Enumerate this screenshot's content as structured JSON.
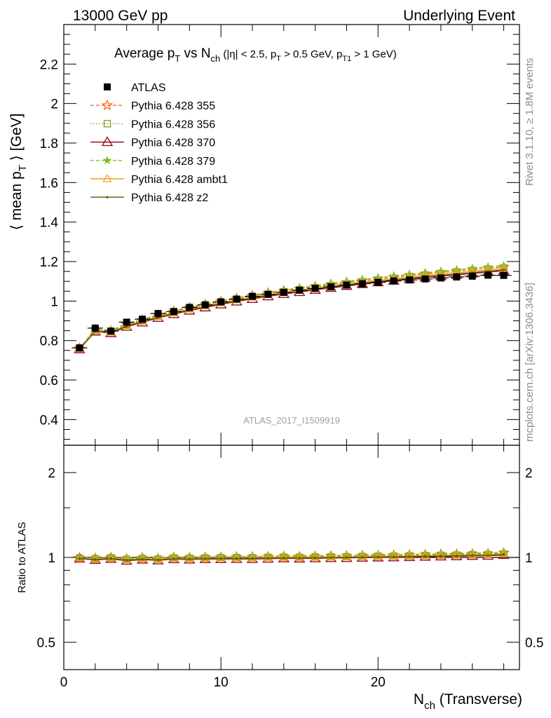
{
  "header": {
    "left": "13000 GeV pp",
    "right": "Underlying Event"
  },
  "side": {
    "rivet": "Rivet 3.1.10, ≥ 1.8M events",
    "mcplots": "mcplots.cern.ch [arXiv:1306.3436]"
  },
  "colors": {
    "atlas": "#000000",
    "p355": "#ff6a1a",
    "p356": "#7c9e1e",
    "p370": "#9b0e1b",
    "p379": "#79c11d",
    "ambt1": "#f0a018",
    "z2": "#5b5b0a"
  },
  "chart_data": [
    {
      "type": "scatter",
      "panel": "main",
      "title_parts": {
        "a": "Average p",
        "a_sub": "T",
        "b": " vs N",
        "b_sub": "ch",
        "c": " (|η| < 2.5, p",
        "c_sub": "T",
        "d": " > 0.5 GeV, p",
        "d_sub": "T1",
        "e": " > 1 GeV)"
      },
      "ylabel_parts": {
        "a": "⟨ mean p",
        "sub": "T",
        "b": " ⟩ [GeV]"
      },
      "xlabel_parts": {
        "a": "N",
        "sub": "ch",
        "b": " (Transverse)"
      },
      "watermark": "ATLAS_2017_I1509919",
      "xlim": [
        0,
        29
      ],
      "ylim": [
        0.27,
        2.4
      ],
      "xticks": [
        0,
        10,
        20
      ],
      "xtick_labels": [
        "0",
        "10",
        "20"
      ],
      "yticks": [
        0.4,
        0.6,
        0.8,
        1.0,
        1.2,
        1.4,
        1.6,
        1.8,
        2.0,
        2.2
      ],
      "ytick_labels": [
        "0.4",
        "0.6",
        "0.8",
        "1",
        "1.2",
        "1.4",
        "1.6",
        "1.8",
        "2",
        "2.2"
      ],
      "legend_position": "top-left",
      "x": [
        1,
        2,
        3,
        4,
        5,
        6,
        7,
        8,
        9,
        10,
        11,
        12,
        13,
        14,
        15,
        16,
        17,
        18,
        19,
        20,
        21,
        22,
        23,
        24,
        25,
        26,
        27,
        28
      ],
      "series": [
        {
          "name": "ATLAS",
          "style": "data",
          "values": [
            0.763,
            0.863,
            0.848,
            0.893,
            0.908,
            0.937,
            0.947,
            0.968,
            0.981,
            0.996,
            1.01,
            1.024,
            1.034,
            1.044,
            1.055,
            1.064,
            1.072,
            1.081,
            1.088,
            1.095,
            1.102,
            1.107,
            1.112,
            1.117,
            1.122,
            1.126,
            1.131,
            1.13
          ]
        },
        {
          "name": "Pythia 6.428 355",
          "style": "p355",
          "values": [
            0.76,
            0.856,
            0.848,
            0.882,
            0.904,
            0.928,
            0.947,
            0.966,
            0.982,
            0.998,
            1.013,
            1.027,
            1.04,
            1.052,
            1.062,
            1.073,
            1.084,
            1.094,
            1.103,
            1.112,
            1.121,
            1.129,
            1.137,
            1.145,
            1.152,
            1.159,
            1.166,
            1.172
          ]
        },
        {
          "name": "Pythia 6.428 356",
          "style": "p356",
          "values": [
            0.759,
            0.854,
            0.846,
            0.88,
            0.901,
            0.925,
            0.944,
            0.962,
            0.978,
            0.994,
            1.009,
            1.022,
            1.035,
            1.047,
            1.057,
            1.068,
            1.078,
            1.088,
            1.097,
            1.106,
            1.114,
            1.122,
            1.13,
            1.137,
            1.144,
            1.151,
            1.158,
            1.164
          ]
        },
        {
          "name": "Pythia 6.428 370",
          "style": "p370",
          "values": [
            0.756,
            0.846,
            0.838,
            0.87,
            0.892,
            0.915,
            0.934,
            0.952,
            0.968,
            0.983,
            0.998,
            1.011,
            1.024,
            1.036,
            1.046,
            1.057,
            1.067,
            1.077,
            1.086,
            1.095,
            1.103,
            1.111,
            1.119,
            1.126,
            1.133,
            1.14,
            1.147,
            1.153
          ]
        },
        {
          "name": "Pythia 6.428 379",
          "style": "p379",
          "values": [
            0.762,
            0.858,
            0.851,
            0.885,
            0.907,
            0.931,
            0.951,
            0.97,
            0.986,
            1.002,
            1.017,
            1.031,
            1.044,
            1.056,
            1.067,
            1.078,
            1.089,
            1.099,
            1.109,
            1.118,
            1.127,
            1.135,
            1.143,
            1.151,
            1.159,
            1.166,
            1.173,
            1.179
          ]
        },
        {
          "name": "Pythia 6.428 ambt1",
          "style": "ambt1",
          "values": [
            0.757,
            0.849,
            0.842,
            0.875,
            0.897,
            0.921,
            0.94,
            0.958,
            0.975,
            0.99,
            1.005,
            1.019,
            1.032,
            1.044,
            1.055,
            1.066,
            1.076,
            1.086,
            1.095,
            1.104,
            1.113,
            1.121,
            1.129,
            1.137,
            1.144,
            1.151,
            1.158,
            1.165
          ]
        },
        {
          "name": "Pythia 6.428 z2",
          "style": "z2",
          "values": [
            0.756,
            0.848,
            0.84,
            0.873,
            0.895,
            0.918,
            0.937,
            0.955,
            0.971,
            0.987,
            1.001,
            1.015,
            1.028,
            1.039,
            1.05,
            1.061,
            1.071,
            1.081,
            1.09,
            1.099,
            1.107,
            1.115,
            1.123,
            1.13,
            1.137,
            1.144,
            1.151,
            1.158
          ]
        }
      ]
    },
    {
      "type": "line",
      "panel": "ratio",
      "ylabel": "Ratio to ATLAS",
      "scale": "log",
      "ylim": [
        0.4,
        2.5
      ],
      "yticks": [
        0.5,
        1,
        2
      ],
      "ytick_labels": [
        "0.5",
        "1",
        "2"
      ],
      "xlim": [
        0,
        29
      ],
      "reference": 1
    }
  ]
}
